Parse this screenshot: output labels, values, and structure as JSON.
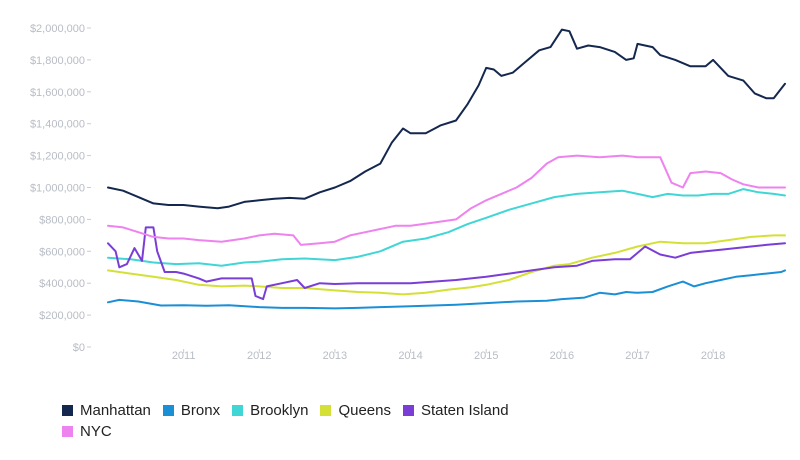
{
  "chart_data": {
    "type": "line",
    "ylim": [
      0,
      2000000
    ],
    "yticks": [
      0,
      200000,
      400000,
      600000,
      800000,
      1000000,
      1200000,
      1400000,
      1600000,
      1800000,
      2000000
    ],
    "ytick_labels": [
      "$0",
      "$200,000",
      "$400,000",
      "$600,000",
      "$800,000",
      "$1,000,000",
      "$1,200,000",
      "$1,400,000",
      "$1,600,000",
      "$1,800,000",
      "$2,000,000"
    ],
    "xlim": [
      2010.0,
      2018.95
    ],
    "xticks": [
      2011,
      2012,
      2013,
      2014,
      2015,
      2016,
      2017,
      2018
    ],
    "xtick_labels": [
      "2011",
      "2012",
      "2013",
      "2014",
      "2015",
      "2016",
      "2017",
      "2018"
    ],
    "grid": false,
    "legend_position": "bottom-left",
    "series": [
      {
        "name": "Manhattan",
        "color": "#14274e",
        "points": [
          [
            2010.0,
            1000000
          ],
          [
            2010.2,
            980000
          ],
          [
            2010.4,
            940000
          ],
          [
            2010.6,
            900000
          ],
          [
            2010.8,
            890000
          ],
          [
            2011.0,
            890000
          ],
          [
            2011.2,
            880000
          ],
          [
            2011.45,
            870000
          ],
          [
            2011.6,
            880000
          ],
          [
            2011.8,
            910000
          ],
          [
            2012.0,
            920000
          ],
          [
            2012.2,
            930000
          ],
          [
            2012.4,
            935000
          ],
          [
            2012.6,
            930000
          ],
          [
            2012.8,
            970000
          ],
          [
            2013.0,
            1000000
          ],
          [
            2013.2,
            1040000
          ],
          [
            2013.4,
            1100000
          ],
          [
            2013.6,
            1150000
          ],
          [
            2013.75,
            1280000
          ],
          [
            2013.9,
            1370000
          ],
          [
            2014.0,
            1340000
          ],
          [
            2014.2,
            1340000
          ],
          [
            2014.4,
            1390000
          ],
          [
            2014.6,
            1420000
          ],
          [
            2014.75,
            1520000
          ],
          [
            2014.9,
            1640000
          ],
          [
            2015.0,
            1750000
          ],
          [
            2015.1,
            1740000
          ],
          [
            2015.2,
            1700000
          ],
          [
            2015.35,
            1720000
          ],
          [
            2015.5,
            1780000
          ],
          [
            2015.7,
            1860000
          ],
          [
            2015.85,
            1880000
          ],
          [
            2016.0,
            1990000
          ],
          [
            2016.1,
            1980000
          ],
          [
            2016.2,
            1870000
          ],
          [
            2016.35,
            1890000
          ],
          [
            2016.5,
            1880000
          ],
          [
            2016.7,
            1850000
          ],
          [
            2016.85,
            1800000
          ],
          [
            2016.95,
            1810000
          ],
          [
            2017.0,
            1900000
          ],
          [
            2017.2,
            1880000
          ],
          [
            2017.3,
            1830000
          ],
          [
            2017.5,
            1800000
          ],
          [
            2017.7,
            1760000
          ],
          [
            2017.9,
            1760000
          ],
          [
            2018.0,
            1800000
          ],
          [
            2018.2,
            1700000
          ],
          [
            2018.4,
            1670000
          ],
          [
            2018.55,
            1590000
          ],
          [
            2018.7,
            1560000
          ],
          [
            2018.8,
            1560000
          ],
          [
            2018.95,
            1650000
          ]
        ]
      },
      {
        "name": "Bronx",
        "color": "#1a8fd6",
        "points": [
          [
            2010.0,
            280000
          ],
          [
            2010.15,
            295000
          ],
          [
            2010.4,
            285000
          ],
          [
            2010.7,
            260000
          ],
          [
            2011.0,
            262000
          ],
          [
            2011.3,
            258000
          ],
          [
            2011.6,
            262000
          ],
          [
            2012.0,
            250000
          ],
          [
            2012.3,
            245000
          ],
          [
            2012.6,
            245000
          ],
          [
            2013.0,
            242000
          ],
          [
            2013.3,
            245000
          ],
          [
            2013.6,
            250000
          ],
          [
            2014.0,
            255000
          ],
          [
            2014.3,
            260000
          ],
          [
            2014.6,
            265000
          ],
          [
            2015.0,
            275000
          ],
          [
            2015.4,
            285000
          ],
          [
            2015.8,
            290000
          ],
          [
            2016.0,
            300000
          ],
          [
            2016.3,
            310000
          ],
          [
            2016.5,
            340000
          ],
          [
            2016.7,
            330000
          ],
          [
            2016.85,
            345000
          ],
          [
            2017.0,
            340000
          ],
          [
            2017.2,
            345000
          ],
          [
            2017.4,
            380000
          ],
          [
            2017.6,
            410000
          ],
          [
            2017.75,
            380000
          ],
          [
            2017.9,
            400000
          ],
          [
            2018.1,
            420000
          ],
          [
            2018.3,
            440000
          ],
          [
            2018.5,
            450000
          ],
          [
            2018.7,
            460000
          ],
          [
            2018.9,
            470000
          ],
          [
            2018.95,
            480000
          ]
        ]
      },
      {
        "name": "Brooklyn",
        "color": "#40d6d6",
        "points": [
          [
            2010.0,
            560000
          ],
          [
            2010.3,
            550000
          ],
          [
            2010.6,
            530000
          ],
          [
            2010.9,
            520000
          ],
          [
            2011.2,
            525000
          ],
          [
            2011.5,
            510000
          ],
          [
            2011.8,
            530000
          ],
          [
            2012.0,
            535000
          ],
          [
            2012.3,
            550000
          ],
          [
            2012.6,
            555000
          ],
          [
            2013.0,
            545000
          ],
          [
            2013.3,
            565000
          ],
          [
            2013.6,
            600000
          ],
          [
            2013.9,
            660000
          ],
          [
            2014.2,
            680000
          ],
          [
            2014.5,
            720000
          ],
          [
            2014.75,
            770000
          ],
          [
            2015.0,
            810000
          ],
          [
            2015.3,
            860000
          ],
          [
            2015.6,
            900000
          ],
          [
            2015.9,
            940000
          ],
          [
            2016.2,
            960000
          ],
          [
            2016.5,
            970000
          ],
          [
            2016.8,
            980000
          ],
          [
            2017.0,
            960000
          ],
          [
            2017.2,
            940000
          ],
          [
            2017.4,
            960000
          ],
          [
            2017.6,
            950000
          ],
          [
            2017.8,
            950000
          ],
          [
            2018.0,
            960000
          ],
          [
            2018.2,
            960000
          ],
          [
            2018.4,
            990000
          ],
          [
            2018.6,
            970000
          ],
          [
            2018.8,
            960000
          ],
          [
            2018.95,
            950000
          ]
        ]
      },
      {
        "name": "Queens",
        "color": "#d4e036",
        "points": [
          [
            2010.0,
            480000
          ],
          [
            2010.3,
            460000
          ],
          [
            2010.6,
            440000
          ],
          [
            2010.9,
            420000
          ],
          [
            2011.2,
            390000
          ],
          [
            2011.5,
            380000
          ],
          [
            2011.8,
            385000
          ],
          [
            2012.0,
            380000
          ],
          [
            2012.3,
            370000
          ],
          [
            2012.6,
            370000
          ],
          [
            2013.0,
            355000
          ],
          [
            2013.3,
            345000
          ],
          [
            2013.6,
            340000
          ],
          [
            2013.9,
            330000
          ],
          [
            2014.2,
            340000
          ],
          [
            2014.5,
            360000
          ],
          [
            2014.8,
            375000
          ],
          [
            2015.0,
            390000
          ],
          [
            2015.3,
            420000
          ],
          [
            2015.6,
            470000
          ],
          [
            2015.9,
            510000
          ],
          [
            2016.1,
            520000
          ],
          [
            2016.4,
            560000
          ],
          [
            2016.7,
            590000
          ],
          [
            2017.0,
            630000
          ],
          [
            2017.3,
            660000
          ],
          [
            2017.6,
            650000
          ],
          [
            2017.9,
            650000
          ],
          [
            2018.2,
            670000
          ],
          [
            2018.5,
            690000
          ],
          [
            2018.8,
            700000
          ],
          [
            2018.95,
            700000
          ]
        ]
      },
      {
        "name": "Staten Island",
        "color": "#7a3ed6",
        "points": [
          [
            2010.0,
            650000
          ],
          [
            2010.1,
            600000
          ],
          [
            2010.15,
            500000
          ],
          [
            2010.25,
            520000
          ],
          [
            2010.35,
            620000
          ],
          [
            2010.45,
            540000
          ],
          [
            2010.5,
            750000
          ],
          [
            2010.6,
            750000
          ],
          [
            2010.65,
            600000
          ],
          [
            2010.75,
            470000
          ],
          [
            2010.9,
            470000
          ],
          [
            2011.0,
            460000
          ],
          [
            2011.2,
            430000
          ],
          [
            2011.3,
            410000
          ],
          [
            2011.5,
            430000
          ],
          [
            2011.7,
            430000
          ],
          [
            2011.9,
            430000
          ],
          [
            2011.95,
            320000
          ],
          [
            2012.05,
            300000
          ],
          [
            2012.1,
            380000
          ],
          [
            2012.3,
            400000
          ],
          [
            2012.5,
            420000
          ],
          [
            2012.6,
            370000
          ],
          [
            2012.8,
            400000
          ],
          [
            2013.0,
            395000
          ],
          [
            2013.3,
            400000
          ],
          [
            2013.6,
            400000
          ],
          [
            2014.0,
            400000
          ],
          [
            2014.3,
            410000
          ],
          [
            2014.6,
            420000
          ],
          [
            2015.0,
            440000
          ],
          [
            2015.3,
            460000
          ],
          [
            2015.6,
            480000
          ],
          [
            2015.9,
            500000
          ],
          [
            2016.2,
            510000
          ],
          [
            2016.4,
            540000
          ],
          [
            2016.7,
            550000
          ],
          [
            2016.9,
            550000
          ],
          [
            2017.1,
            630000
          ],
          [
            2017.3,
            580000
          ],
          [
            2017.5,
            560000
          ],
          [
            2017.7,
            590000
          ],
          [
            2017.9,
            600000
          ],
          [
            2018.1,
            610000
          ],
          [
            2018.3,
            620000
          ],
          [
            2018.5,
            630000
          ],
          [
            2018.7,
            640000
          ],
          [
            2018.95,
            650000
          ]
        ]
      },
      {
        "name": "NYC",
        "color": "#ee82ee",
        "points": [
          [
            2010.0,
            760000
          ],
          [
            2010.2,
            750000
          ],
          [
            2010.4,
            720000
          ],
          [
            2010.6,
            690000
          ],
          [
            2010.8,
            680000
          ],
          [
            2011.0,
            680000
          ],
          [
            2011.2,
            670000
          ],
          [
            2011.5,
            660000
          ],
          [
            2011.8,
            680000
          ],
          [
            2012.0,
            700000
          ],
          [
            2012.2,
            710000
          ],
          [
            2012.45,
            700000
          ],
          [
            2012.55,
            640000
          ],
          [
            2012.8,
            650000
          ],
          [
            2013.0,
            660000
          ],
          [
            2013.2,
            700000
          ],
          [
            2013.4,
            720000
          ],
          [
            2013.6,
            740000
          ],
          [
            2013.8,
            760000
          ],
          [
            2014.0,
            760000
          ],
          [
            2014.3,
            780000
          ],
          [
            2014.6,
            800000
          ],
          [
            2014.8,
            870000
          ],
          [
            2015.0,
            920000
          ],
          [
            2015.2,
            960000
          ],
          [
            2015.4,
            1000000
          ],
          [
            2015.6,
            1060000
          ],
          [
            2015.8,
            1150000
          ],
          [
            2015.95,
            1190000
          ],
          [
            2016.2,
            1200000
          ],
          [
            2016.5,
            1190000
          ],
          [
            2016.8,
            1200000
          ],
          [
            2017.0,
            1190000
          ],
          [
            2017.3,
            1190000
          ],
          [
            2017.45,
            1030000
          ],
          [
            2017.6,
            1000000
          ],
          [
            2017.7,
            1090000
          ],
          [
            2017.9,
            1100000
          ],
          [
            2018.1,
            1090000
          ],
          [
            2018.25,
            1050000
          ],
          [
            2018.4,
            1020000
          ],
          [
            2018.6,
            1000000
          ],
          [
            2018.95,
            1000000
          ]
        ]
      }
    ]
  }
}
